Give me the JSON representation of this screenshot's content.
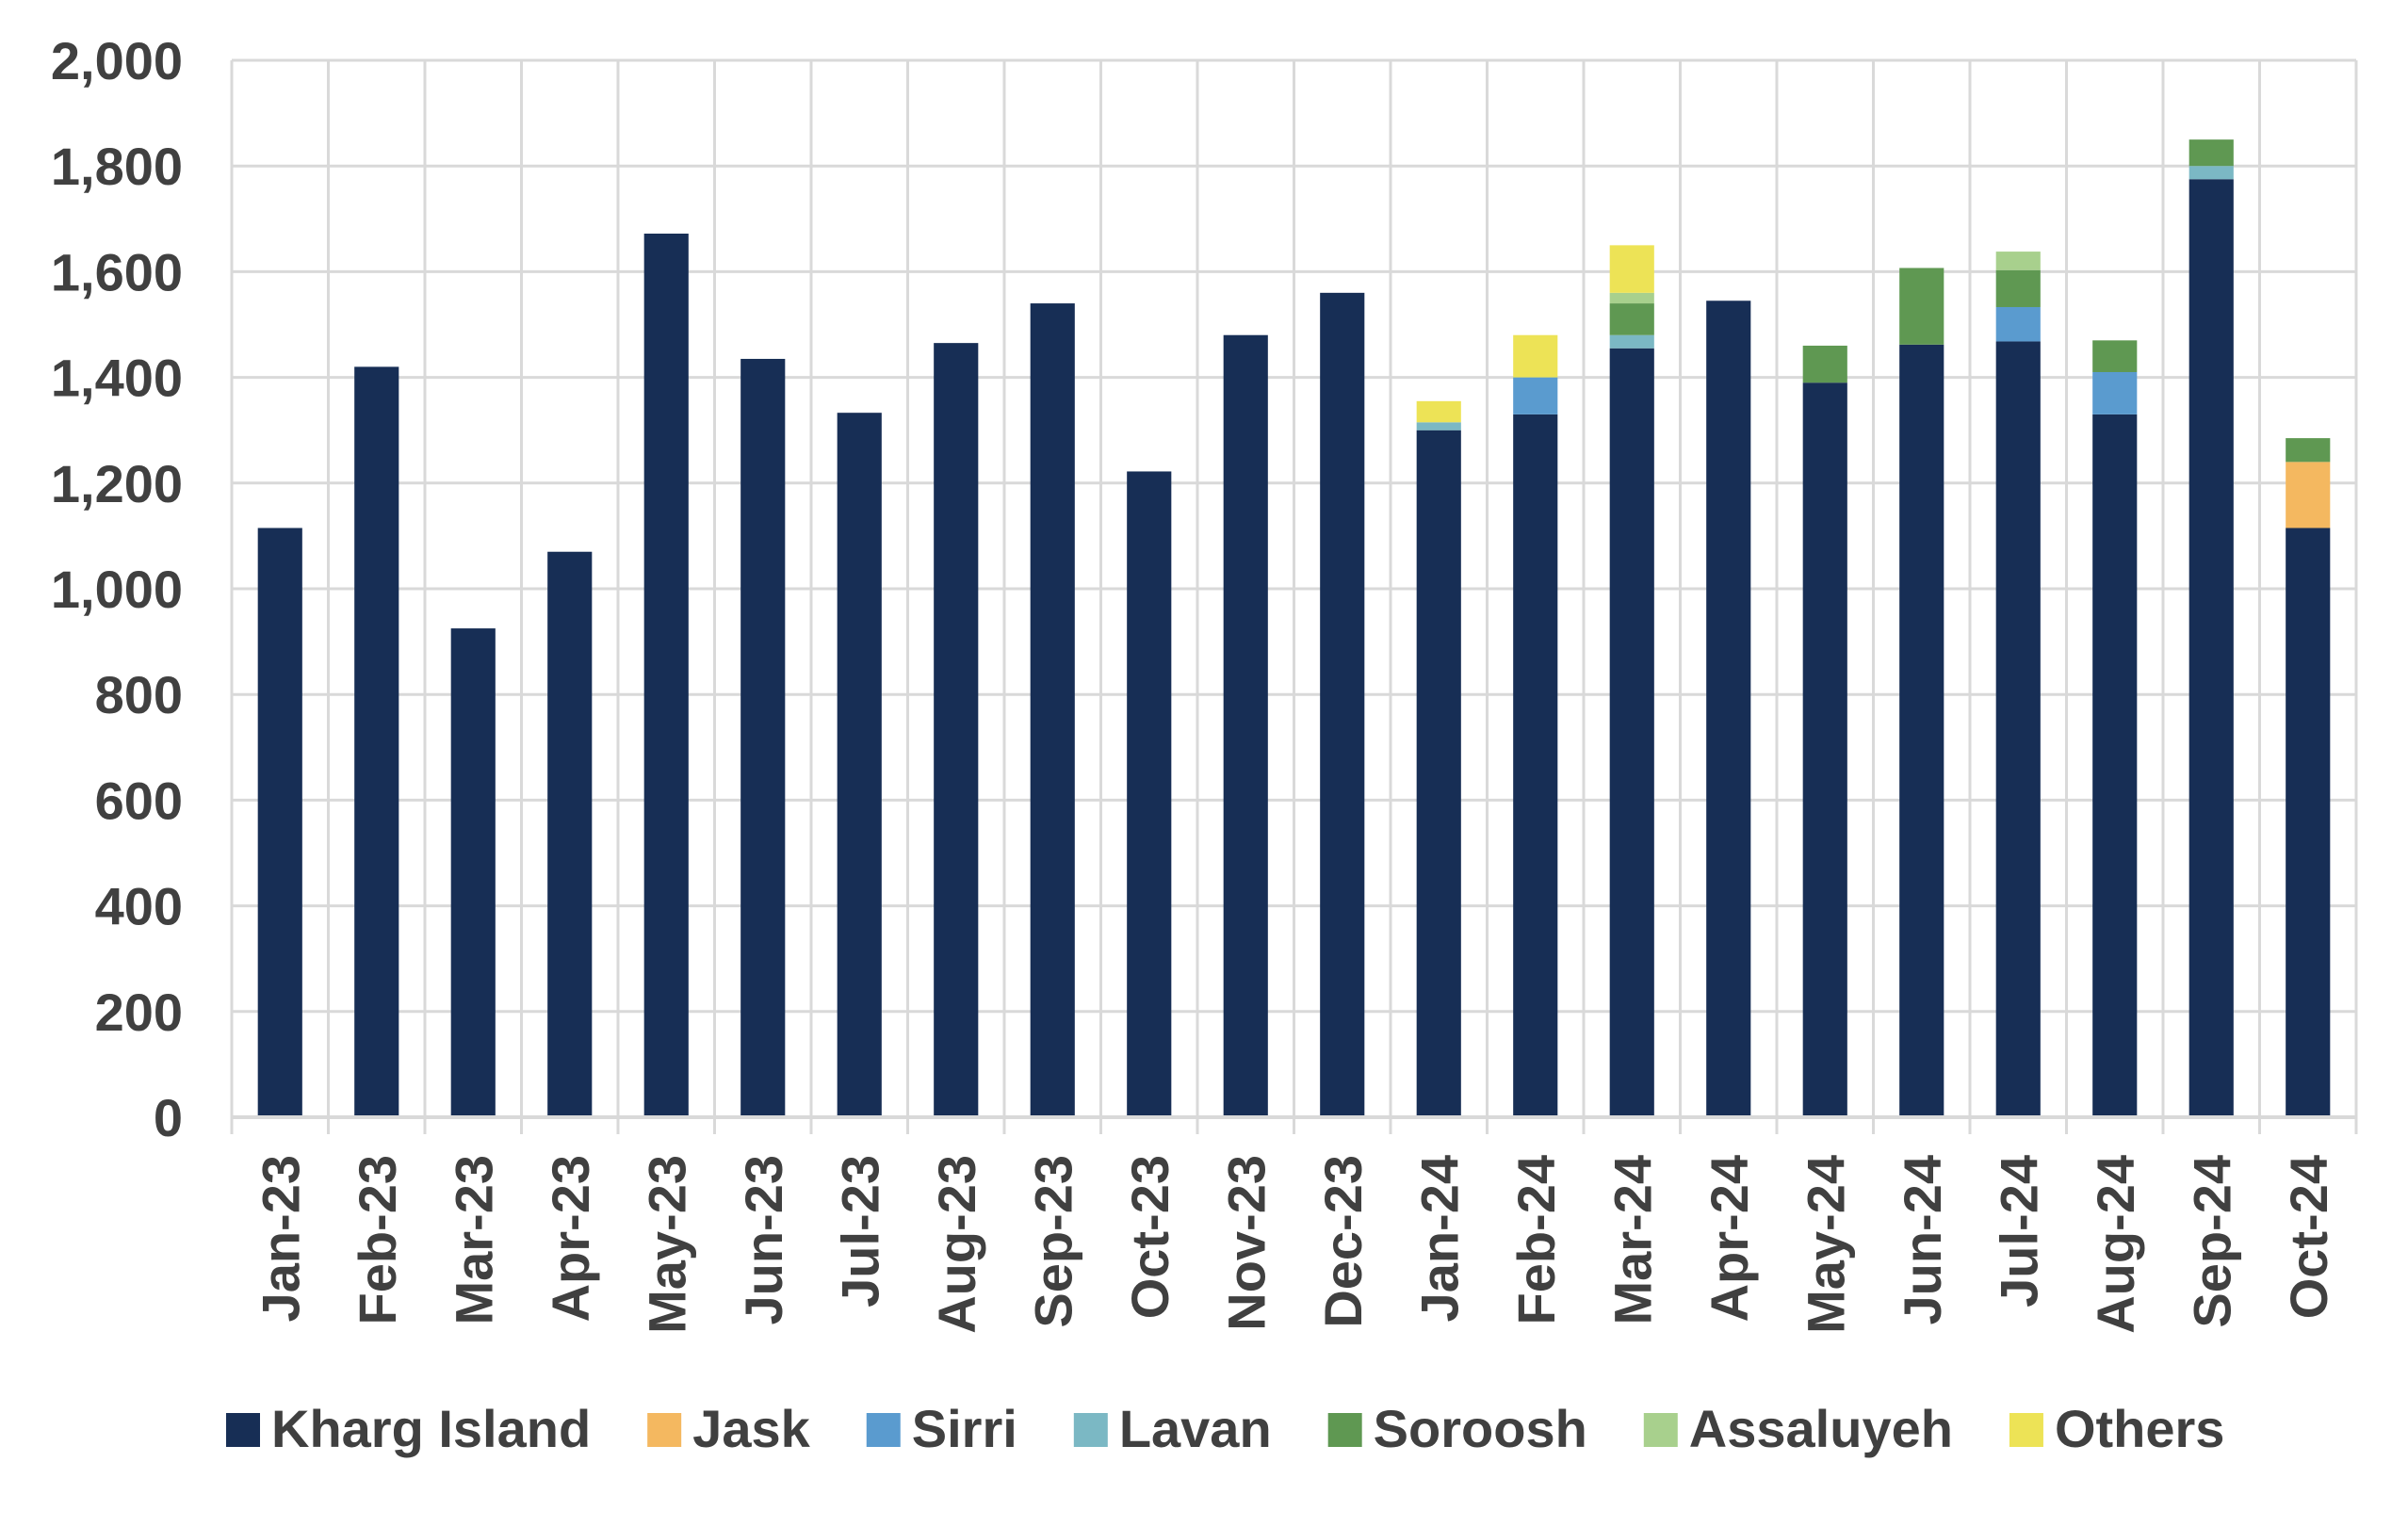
{
  "chart_data": {
    "type": "bar",
    "stacked": true,
    "title": "",
    "xlabel": "",
    "ylabel": "",
    "ylim": [
      0,
      2000
    ],
    "yticks": [
      "0",
      "200",
      "400",
      "600",
      "800",
      "1,000",
      "1,200",
      "1,400",
      "1,600",
      "1,800",
      "2,000"
    ],
    "grid": true,
    "legend_position": "bottom",
    "categories": [
      "Jan-23",
      "Feb-23",
      "Mar-23",
      "Apr-23",
      "May-23",
      "Jun-23",
      "Jul-23",
      "Aug-23",
      "Sep-23",
      "Oct-23",
      "Nov-23",
      "Dec-23",
      "Jan-24",
      "Feb-24",
      "Mar-24",
      "Apr-24",
      "May-24",
      "Jun-24",
      "Jul-24",
      "Aug-24",
      "Sep-24",
      "Oct-24"
    ],
    "series": [
      {
        "name": "Kharg Island",
        "color": "#172e55",
        "values": [
          1115,
          1420,
          925,
          1070,
          1672,
          1435,
          1333,
          1465,
          1540,
          1222,
          1480,
          1560,
          1300,
          1330,
          1455,
          1545,
          1390,
          1462,
          1468,
          1330,
          1775,
          1115
        ]
      },
      {
        "name": "Jask",
        "color": "#f4b860",
        "values": [
          0,
          0,
          0,
          0,
          0,
          0,
          0,
          0,
          0,
          0,
          0,
          0,
          0,
          0,
          0,
          0,
          0,
          0,
          0,
          0,
          0,
          125
        ]
      },
      {
        "name": "Sirri",
        "color": "#5a9bcf",
        "values": [
          0,
          0,
          0,
          0,
          0,
          0,
          0,
          0,
          0,
          0,
          0,
          0,
          0,
          70,
          0,
          0,
          0,
          0,
          65,
          80,
          0,
          0
        ]
      },
      {
        "name": "Lavan",
        "color": "#7bb8c4",
        "values": [
          0,
          0,
          0,
          0,
          0,
          0,
          0,
          0,
          0,
          0,
          0,
          0,
          15,
          0,
          25,
          0,
          0,
          0,
          0,
          0,
          25,
          0
        ]
      },
      {
        "name": "Soroosh",
        "color": "#5f9852",
        "values": [
          0,
          0,
          0,
          0,
          0,
          0,
          0,
          0,
          0,
          0,
          0,
          0,
          0,
          0,
          60,
          0,
          70,
          145,
          70,
          60,
          50,
          45
        ]
      },
      {
        "name": "Assaluyeh",
        "color": "#a8d08d",
        "values": [
          0,
          0,
          0,
          0,
          0,
          0,
          0,
          0,
          0,
          0,
          0,
          0,
          0,
          0,
          20,
          0,
          0,
          0,
          35,
          0,
          0,
          0
        ]
      },
      {
        "name": "Others",
        "color": "#ede356",
        "values": [
          0,
          0,
          0,
          0,
          0,
          0,
          0,
          0,
          0,
          0,
          0,
          0,
          40,
          80,
          90,
          0,
          0,
          0,
          0,
          0,
          0,
          0
        ]
      }
    ]
  }
}
